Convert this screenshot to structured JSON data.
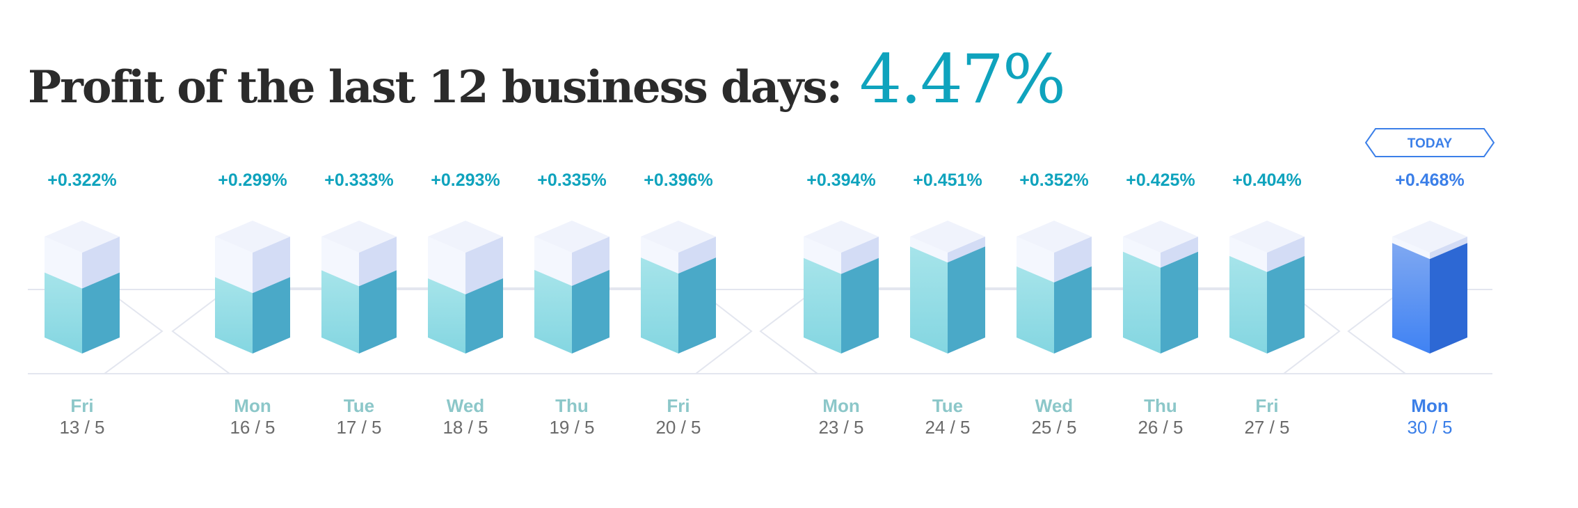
{
  "header": {
    "title": "Profit of the last 12 business days:",
    "total": "4.47%"
  },
  "today_badge": "TODAY",
  "colors": {
    "title": "#2b2b2b",
    "accent": "#0fa3bd",
    "today": "#3b7fe8",
    "day_label": "#8cc7c9",
    "date_label": "#6b6b6b",
    "bar_front": "#8fdbe4",
    "bar_side": "#4aa9c8",
    "today_front": "#4a8cf0",
    "today_side": "#2d68d4",
    "cube_top": "#f0f3fc",
    "cube_front": "#f4f7fe",
    "cube_side": "#d3dcf5",
    "line": "#e3e6ef"
  },
  "chart_data": {
    "type": "bar",
    "title": "Profit of the last 12 business days:",
    "xlabel": "",
    "ylabel": "",
    "ylim": [
      0,
      0.5
    ],
    "grid": false,
    "categories": [
      "13 / 5",
      "16 / 5",
      "17 / 5",
      "18 / 5",
      "19 / 5",
      "20 / 5",
      "23 / 5",
      "24 / 5",
      "25 / 5",
      "26 / 5",
      "27 / 5",
      "30 / 5"
    ],
    "days": [
      "Fri",
      "Mon",
      "Tue",
      "Wed",
      "Thu",
      "Fri",
      "Mon",
      "Tue",
      "Wed",
      "Thu",
      "Fri",
      "Mon"
    ],
    "value_labels": [
      "+0.322%",
      "+0.299%",
      "+0.333%",
      "+0.293%",
      "+0.335%",
      "+0.396%",
      "+0.394%",
      "+0.451%",
      "+0.352%",
      "+0.425%",
      "+0.404%",
      "+0.468%"
    ],
    "series": [
      {
        "values": [
          0.322,
          0.299,
          0.333,
          0.293,
          0.335,
          0.396,
          0.394,
          0.451,
          0.352,
          0.425,
          0.404,
          0.468
        ]
      }
    ],
    "highlight_index": 11
  }
}
